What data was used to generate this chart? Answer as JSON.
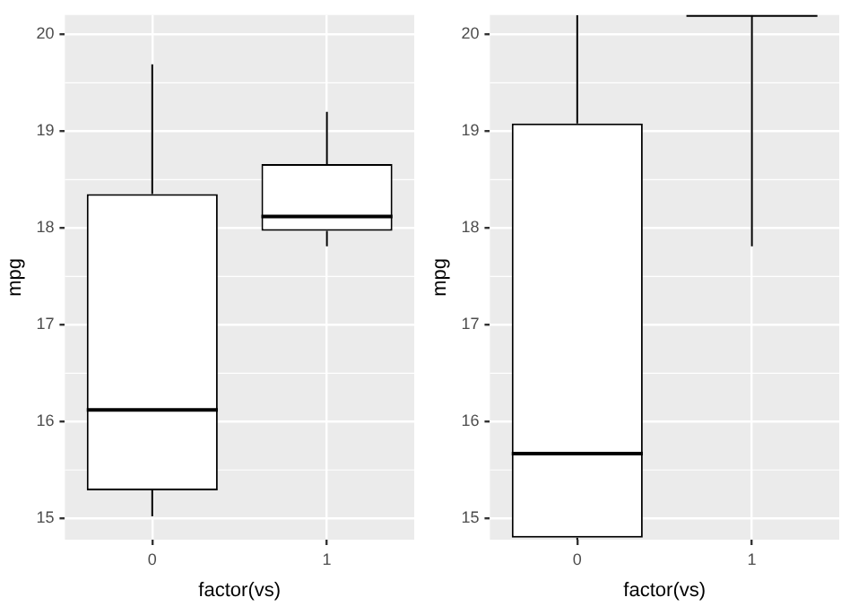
{
  "chart_data": [
    {
      "type": "box",
      "categories": [
        "0",
        "1"
      ],
      "xlabel": "factor(vs)",
      "ylabel": "mpg",
      "ylim": [
        14.78,
        20.2
      ],
      "yticks": [
        15,
        16,
        17,
        18,
        19,
        20
      ],
      "grid": true,
      "color": "#000000",
      "boxes": [
        {
          "low": 15.02,
          "q1": 15.29,
          "median": 16.12,
          "q3": 18.35,
          "high": 19.69
        },
        {
          "low": 17.81,
          "q1": 17.97,
          "median": 18.12,
          "q3": 18.66,
          "high": 19.2
        }
      ]
    },
    {
      "type": "box",
      "categories": [
        "0",
        "1"
      ],
      "xlabel": "factor(vs)",
      "ylabel": "mpg",
      "ylim": [
        14.78,
        20.2
      ],
      "yticks": [
        15,
        16,
        17,
        18,
        19,
        20
      ],
      "grid": true,
      "color": "#000000",
      "boxes": [
        {
          "low": 14.78,
          "q1": 14.8,
          "median": 15.67,
          "q3": 19.08,
          "high": 20.2
        },
        {
          "low": 17.81,
          "q1": 20.2,
          "median": 20.2,
          "q3": 20.2,
          "high": 20.2
        }
      ]
    }
  ]
}
